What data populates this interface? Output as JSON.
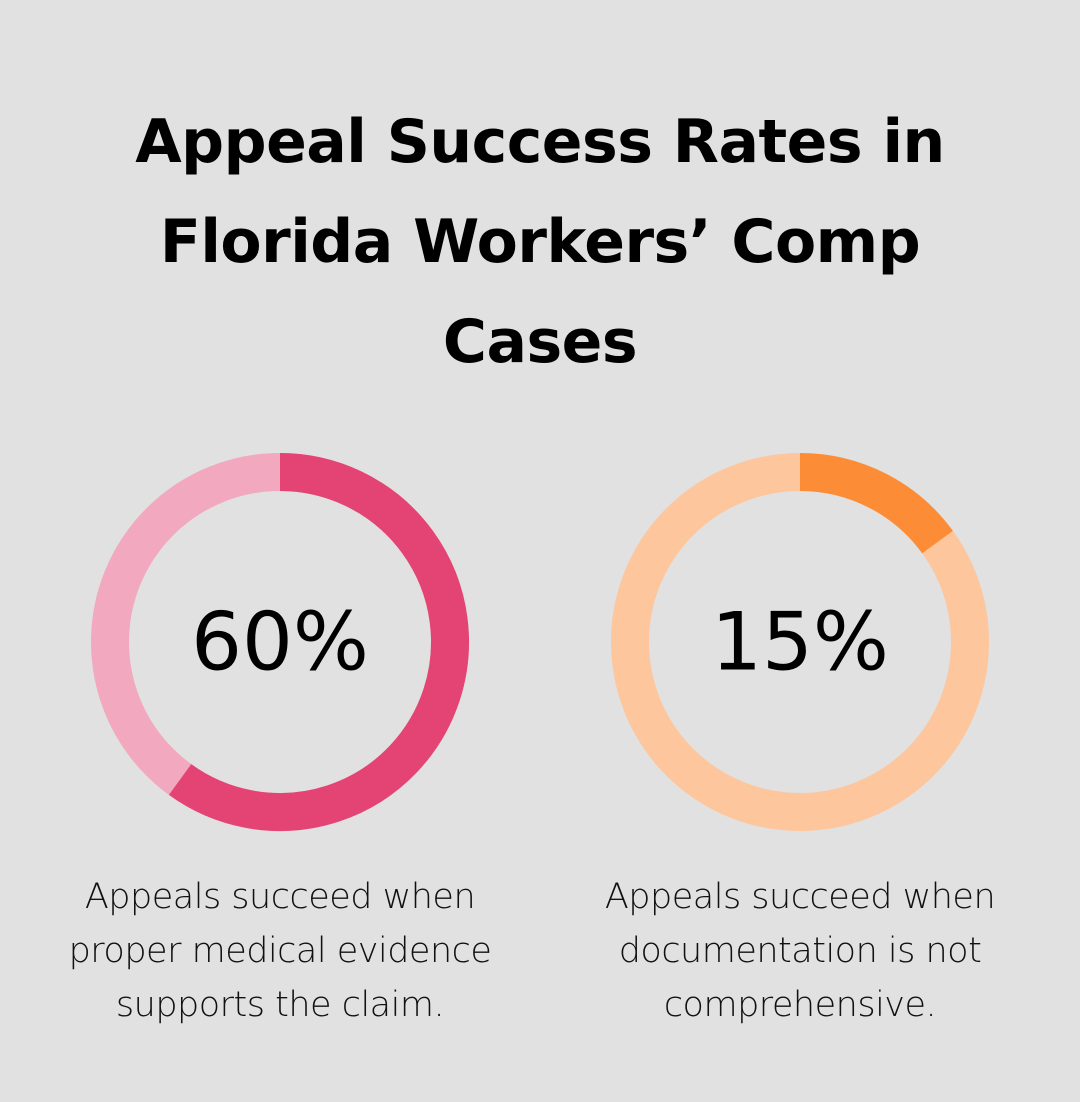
{
  "title_lines": [
    "Appeal Success Rates in",
    "Florida Workers’ Comp",
    "Cases"
  ],
  "chart_data": [
    {
      "type": "pie",
      "style": "donut",
      "value": 60,
      "label": "60%",
      "caption_lines": [
        "Appeals succeed when",
        "proper medical evidence",
        "supports the claim."
      ],
      "colors": {
        "filled": "#e44474",
        "track": "#f2a8bf"
      }
    },
    {
      "type": "pie",
      "style": "donut",
      "value": 15,
      "label": "15%",
      "caption_lines": [
        "Appeals succeed when",
        "documentation is not",
        "comprehensive."
      ],
      "colors": {
        "filled": "#fd8c36",
        "track": "#fec69c"
      }
    }
  ]
}
